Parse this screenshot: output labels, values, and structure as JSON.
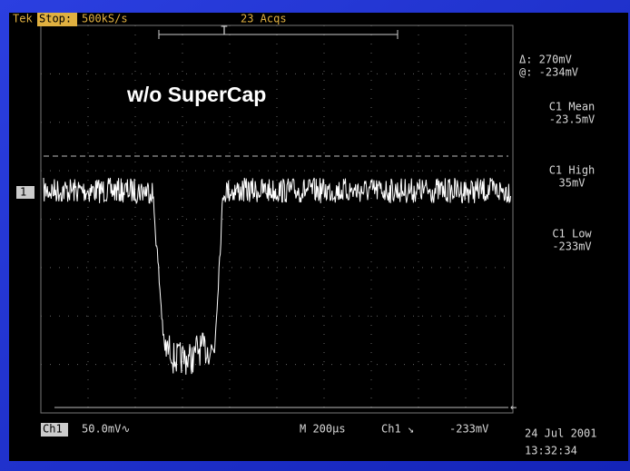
{
  "header": {
    "brand": "Tek",
    "mode": "Stop:",
    "rate": "500kS/s",
    "acquisitions": "23 Acqs"
  },
  "title": "w/o SuperCap",
  "cursor": {
    "delta": "Δ: 270mV",
    "at": "@: -234mV"
  },
  "measurements": [
    {
      "name": "C1 Mean",
      "value": "-23.5mV"
    },
    {
      "name": "C1 High",
      "value": "35mV"
    },
    {
      "name": "C1 Low",
      "value": "-233mV"
    }
  ],
  "channel_marker": "1",
  "footer": {
    "channel": "Ch1",
    "scale": "50.0mV∿",
    "timebase": "M 200µs",
    "trigger": "Ch1 ↘",
    "trigger_level": "-233mV",
    "date": "24 Jul 2001",
    "time": "13:32:34"
  }
}
